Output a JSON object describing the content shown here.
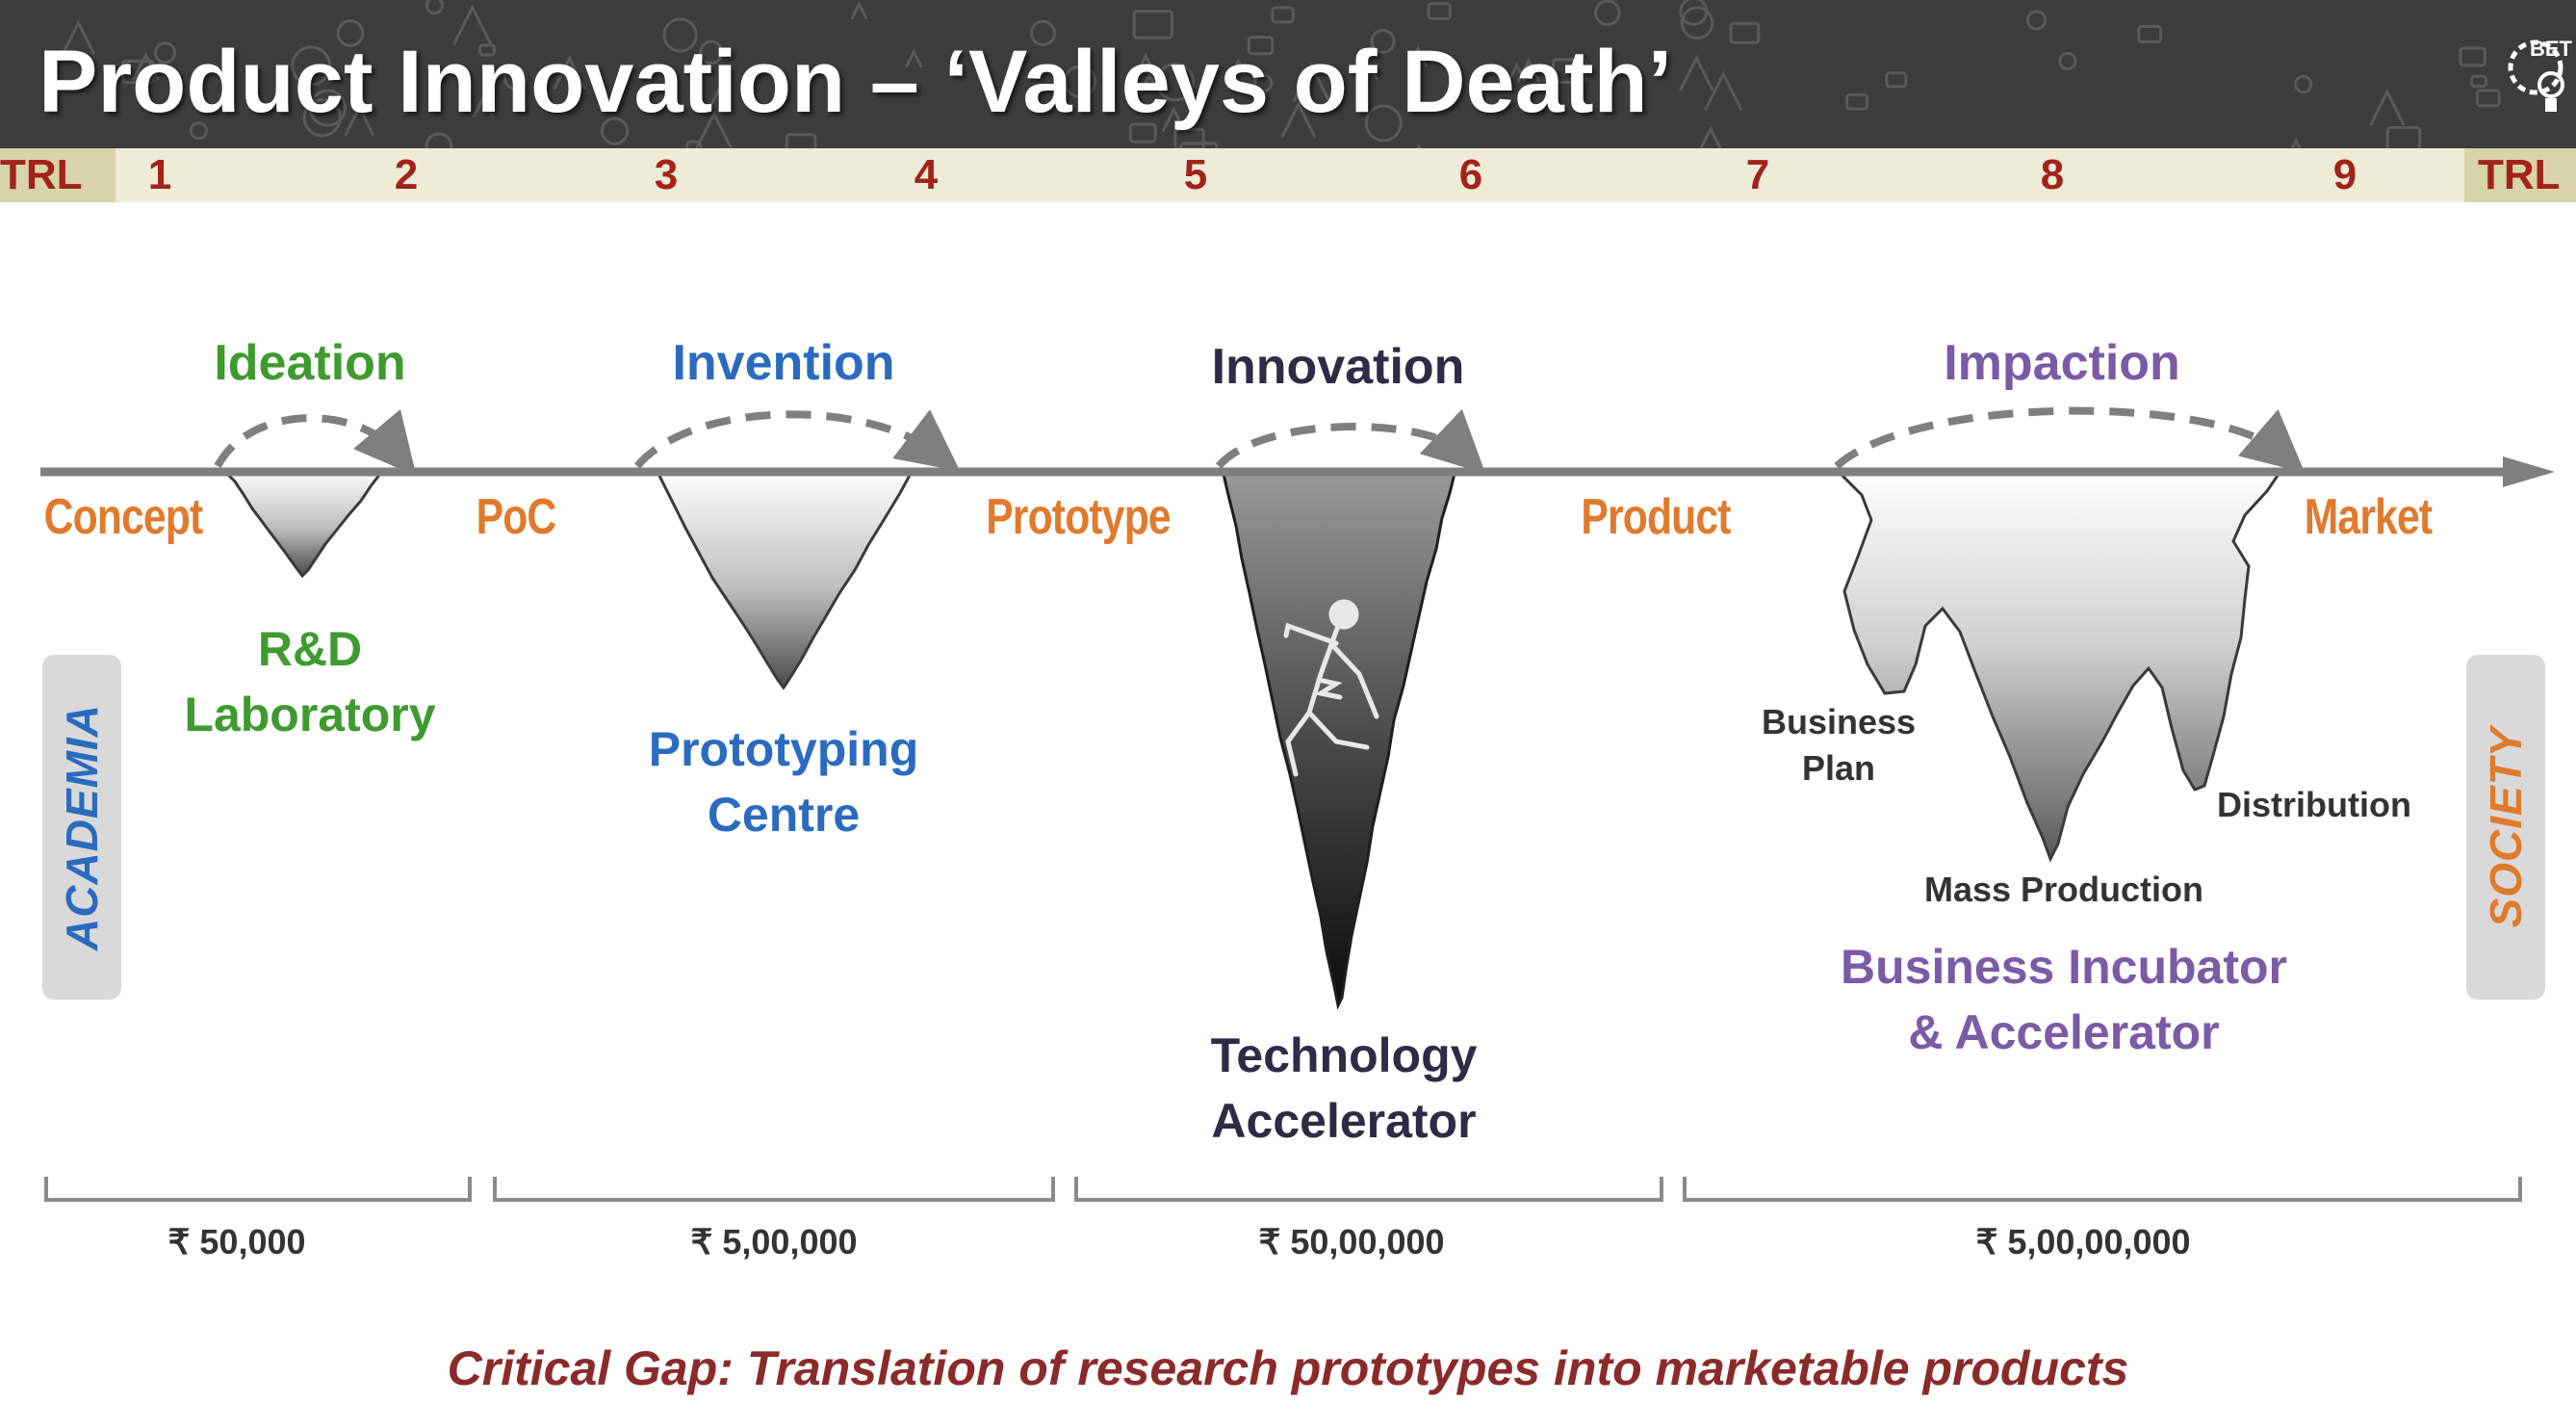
{
  "title": "Product Innovation – ‘Valleys of Death’",
  "logo": {
    "text": "BET"
  },
  "trl_bar": {
    "label_left": "TRL",
    "label_right": "TRL",
    "levels": [
      "1",
      "2",
      "3",
      "4",
      "5",
      "6",
      "7",
      "8",
      "9"
    ]
  },
  "stages": [
    {
      "name": "Ideation",
      "color": "#3f9a2f"
    },
    {
      "name": "Invention",
      "color": "#2a6bbf"
    },
    {
      "name": "Innovation",
      "color": "#2f2a45"
    },
    {
      "name": "Impaction",
      "color": "#7b5aa6"
    }
  ],
  "milestones": [
    "Concept",
    "PoC",
    "Prototype",
    "Product",
    "Market"
  ],
  "milestone_color": "#e07a2c",
  "facilities": [
    {
      "line1": "R&D",
      "line2": "Laboratory",
      "color": "#3f9a2f"
    },
    {
      "line1": "Prototyping",
      "line2": "Centre",
      "color": "#2a6bbf"
    },
    {
      "line1": "Technology",
      "line2": "Accelerator",
      "color": "#2f2a45"
    },
    {
      "line1": "Business Incubator",
      "line2": "& Accelerator",
      "color": "#7b5aa6"
    }
  ],
  "business_steps": {
    "business_plan_line1": "Business",
    "business_plan_line2": "Plan",
    "mass_production": "Mass Production",
    "distribution": "Distribution"
  },
  "costs": [
    "₹ 50,000",
    "₹ 5,00,000",
    "₹ 50,00,000",
    "₹ 5,00,00,000"
  ],
  "side_labels": {
    "left": {
      "text": "ACADEMIA",
      "color": "#2a6bbf"
    },
    "right": {
      "text": "SOCIETY",
      "color": "#e07a2c"
    }
  },
  "critical_gap": "Critical Gap: Translation of research prototypes into marketable products"
}
